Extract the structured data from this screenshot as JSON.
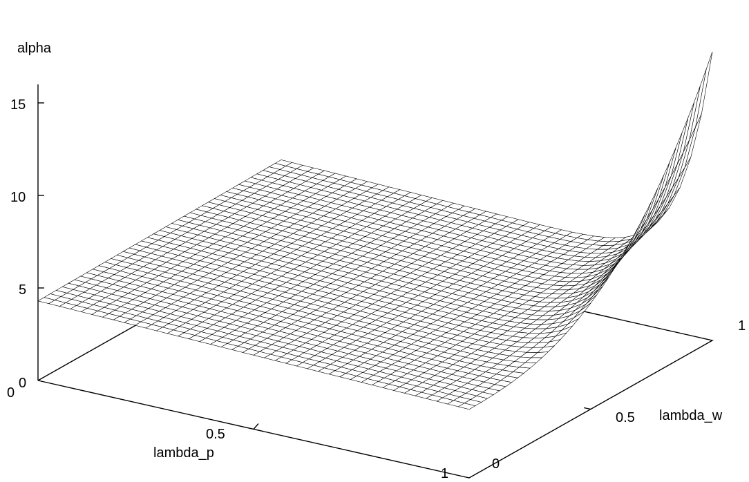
{
  "chart_data": {
    "type": "surface",
    "title": "",
    "x_axis": {
      "label": "lambda_p",
      "ticks": [
        "0",
        "0.5",
        "1"
      ],
      "range": [
        0,
        1
      ]
    },
    "y_axis": {
      "label": "lambda_w",
      "ticks": [
        "0",
        "0.5",
        "1"
      ],
      "range": [
        0,
        1
      ]
    },
    "z_axis": {
      "label": "alpha",
      "ticks": [
        "0",
        "5",
        "10",
        "15"
      ],
      "range": [
        0,
        16
      ]
    },
    "grid_resolution": 40,
    "surface": {
      "description_values": "alpha is about 4.3 at lambda_p=0 and 3.7 at lambda_p=1 for most of the domain; it rises sharply as lambda_p and lambda_w both approach 1, peaking near 16.2",
      "corner_values": {
        "lambda_p0_lambda_w0": 4.3,
        "lambda_p1_lambda_w0": 3.7,
        "lambda_p0_lambda_w1": 4.5,
        "lambda_p1_lambda_w1": 16.2
      }
    },
    "grid": false,
    "legend": "none"
  }
}
